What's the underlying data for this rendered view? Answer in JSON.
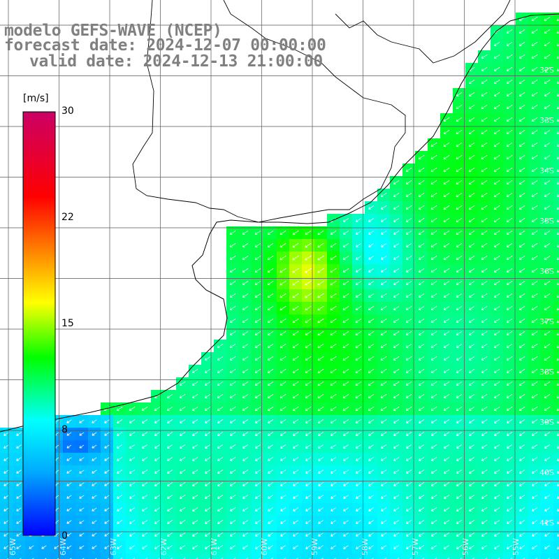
{
  "title": {
    "model": "modelo GEFS-WAVE (NCEP)",
    "forecast": "forecast date: 2024-12-07 00:00:00",
    "valid": "valid date: 2024-12-13 21:00:00"
  },
  "colorbar": {
    "unit": "[m/s]",
    "ticks": [
      "30",
      "22",
      "15",
      "8",
      "0"
    ],
    "tick_values": [
      30,
      22,
      15,
      8,
      0
    ],
    "range": [
      0,
      30
    ],
    "colors": [
      "#0000ff",
      "#00aaff",
      "#00ffff",
      "#00ff00",
      "#ffff00",
      "#ff8000",
      "#ff0000",
      "#cc0066"
    ]
  },
  "map": {
    "land_color": "#ffffff",
    "grid_color": "#444444",
    "coast_color": "#000000",
    "arrow_color": "#ffffff",
    "lat_labels": [
      "32S",
      "33S",
      "34S",
      "35S",
      "36S",
      "37S",
      "38S",
      "39S",
      "40S",
      "41S"
    ],
    "lon_labels": [
      "65W",
      "64W",
      "63W",
      "62W",
      "61W",
      "60W",
      "59W",
      "58W",
      "57W",
      "56W",
      "55W"
    ]
  }
}
